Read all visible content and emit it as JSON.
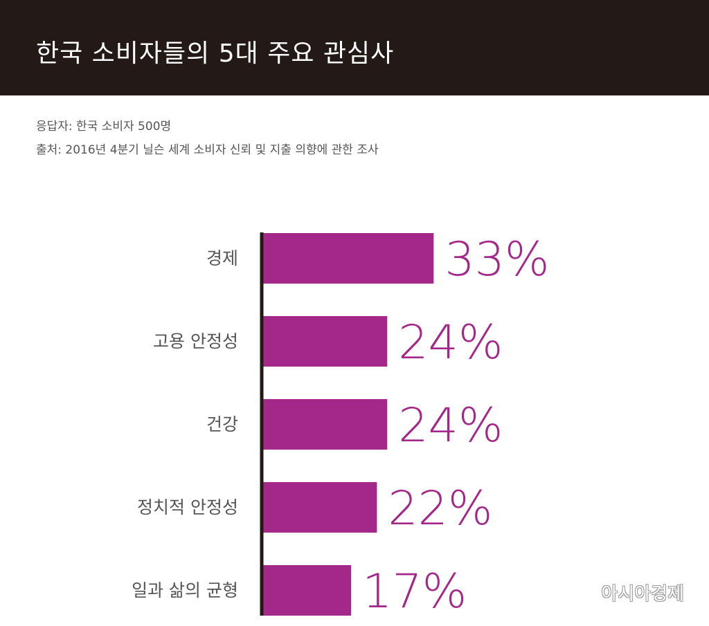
{
  "header": {
    "title": "한국 소비자들의 5대 주요 관심사"
  },
  "meta": {
    "respondents": "응답자: 한국 소비자 500명",
    "source": "출처: 2016년 4분기 닐슨 세계 소비자 신뢰 및 지출 의향에 관한 조사"
  },
  "chart_data": {
    "type": "bar",
    "orientation": "horizontal",
    "title": "한국 소비자들의 5대 주요 관심사",
    "categories": [
      "경제",
      "고용 안정성",
      "건강",
      "정치적 안정성",
      "일과 삶의 균형"
    ],
    "values": [
      33,
      24,
      24,
      22,
      17
    ],
    "value_labels": [
      "33%",
      "24%",
      "24%",
      "22%",
      "17%"
    ],
    "unit": "%",
    "xlim": [
      0,
      100
    ],
    "grid": false,
    "legend": "none",
    "bar_color": "#a4288a",
    "label_color": "#a4288a",
    "axis_color": "#231917"
  },
  "watermark": {
    "text": "아시아경제"
  }
}
